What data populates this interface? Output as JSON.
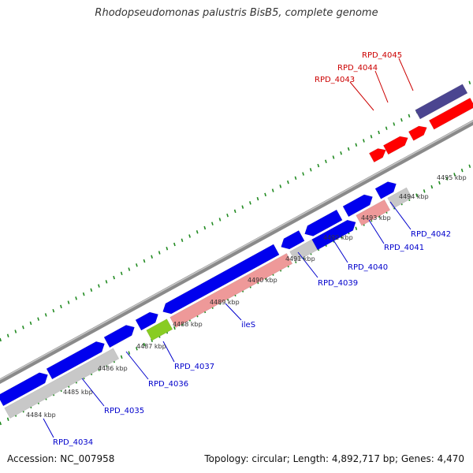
{
  "title": "Rhodopseudomonas palustris BisB5, complete genome",
  "accession": "Accession: NC_007958",
  "topology": "Topology: circular; Length: 4,892,717 bp; Genes: 4,470",
  "colors": {
    "forward_cds": "#0000ee",
    "reverse_cds": "#c8c8c8",
    "highlight_gene": "#ff0000",
    "rrna": "#ee9999",
    "trna": "#88cc22",
    "dark_feature": "#4b4590",
    "tick": "#228b22",
    "backbone": "#888888",
    "label_blue": "#0000cc",
    "label_red": "#cc0000"
  },
  "kbp_labels": [
    "4484 kbp",
    "4485 kbp",
    "4486 kbp",
    "4487 kbp",
    "4488 kbp",
    "4489 kbp",
    "4490 kbp",
    "4491 kbp",
    "4492 kbp",
    "4493 kbp",
    "4494 kbp",
    "4495 kbp"
  ],
  "gene_labels": [
    {
      "text": "RPD_4034",
      "color": "blue"
    },
    {
      "text": "RPD_4035",
      "color": "blue"
    },
    {
      "text": "RPD_4036",
      "color": "blue"
    },
    {
      "text": "RPD_4037",
      "color": "blue"
    },
    {
      "text": "ileS",
      "color": "blue"
    },
    {
      "text": "RPD_4039",
      "color": "blue"
    },
    {
      "text": "RPD_4040",
      "color": "blue"
    },
    {
      "text": "RPD_4041",
      "color": "blue"
    },
    {
      "text": "RPD_4042",
      "color": "blue"
    },
    {
      "text": "RPD_4043",
      "color": "red"
    },
    {
      "text": "RPD_4044",
      "color": "red"
    },
    {
      "text": "RPD_4045",
      "color": "red"
    }
  ]
}
